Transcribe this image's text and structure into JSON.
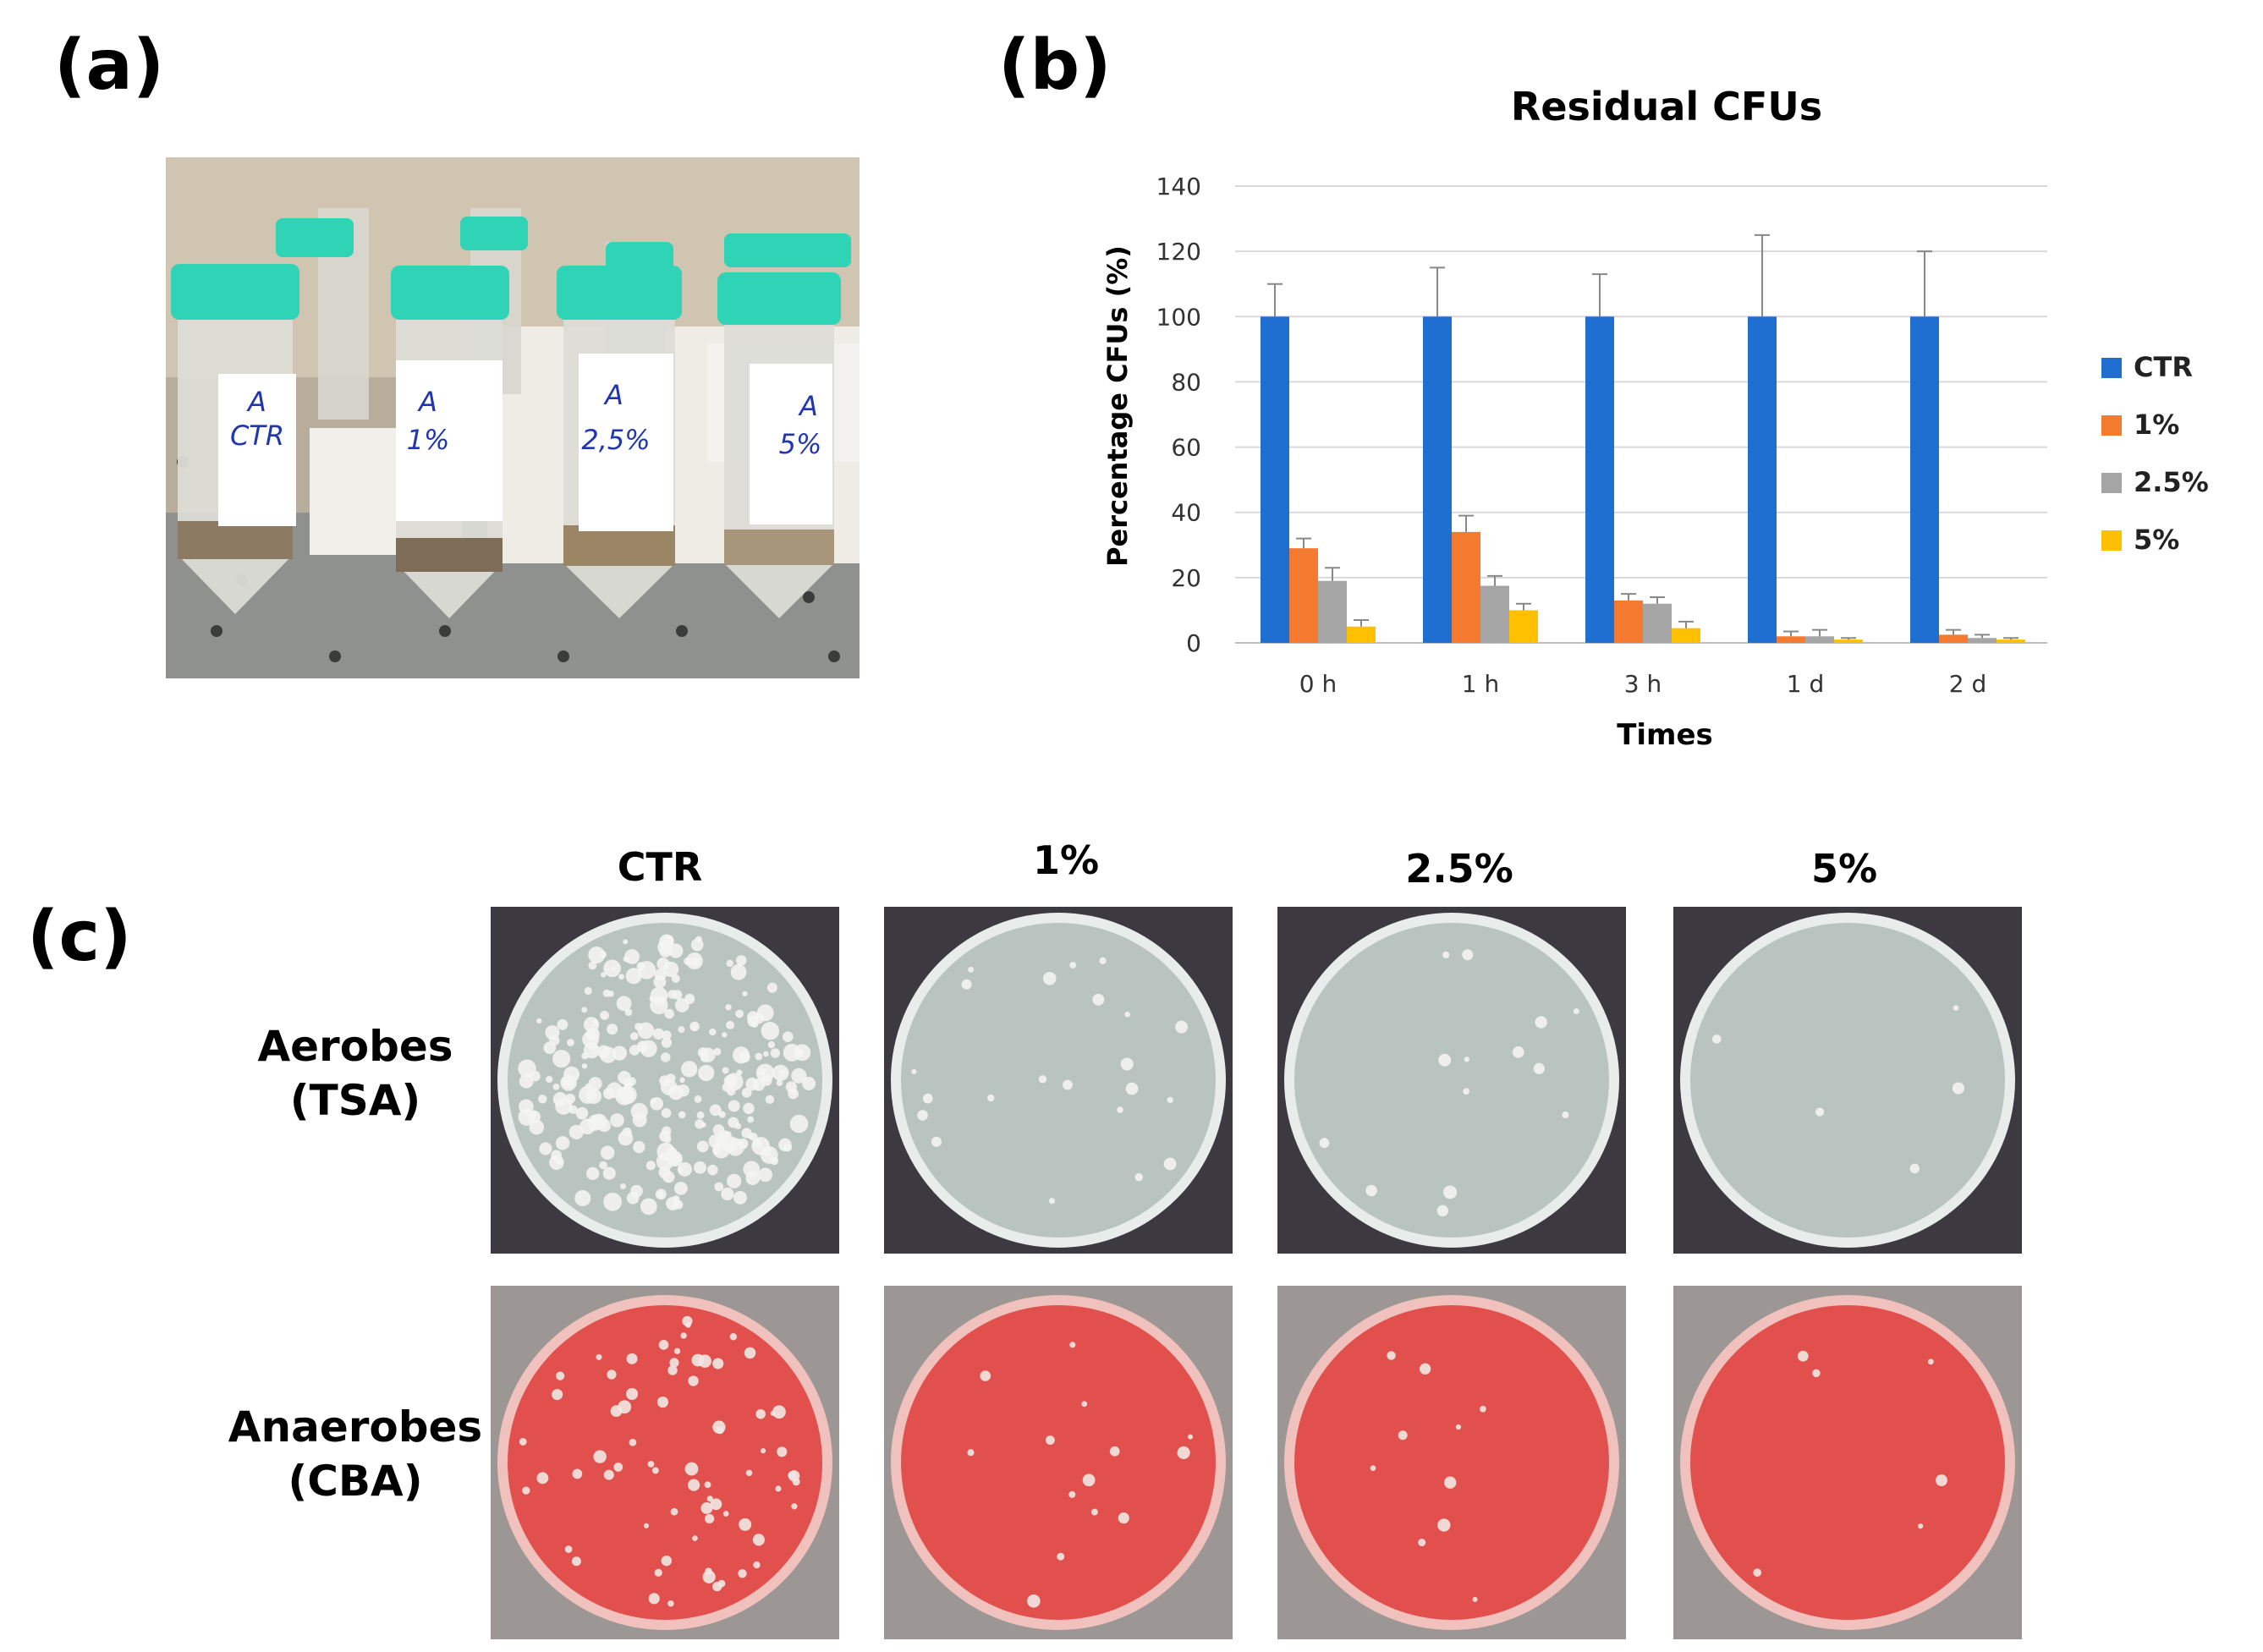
{
  "panels": {
    "a": "(a)",
    "b": "(b)",
    "c": "(c)"
  },
  "tube_labels": [
    {
      "line1": "A",
      "line2": "CTR"
    },
    {
      "line1": "A",
      "line2": "1%"
    },
    {
      "line1": "A",
      "line2": "2,5%"
    },
    {
      "line1": "A",
      "line2": "5%"
    }
  ],
  "chart_data": {
    "type": "bar",
    "title": "Residual CFUs",
    "xlabel": "Times",
    "ylabel": "Percentage CFUs (%)",
    "ylim": [
      0,
      140
    ],
    "yticks": [
      0,
      20,
      40,
      60,
      80,
      100,
      120,
      140
    ],
    "grid": true,
    "legend_position": "right",
    "categories": [
      "0 h",
      "1 h",
      "3 h",
      "1 d",
      "2 d"
    ],
    "series": [
      {
        "name": "CTR",
        "color": "#1f6fd1",
        "values": [
          100,
          100,
          100,
          100,
          100
        ],
        "errors": [
          10,
          15,
          13,
          25,
          20
        ]
      },
      {
        "name": "1%",
        "color": "#f47a30",
        "values": [
          29,
          34,
          13,
          2,
          2.5
        ],
        "errors": [
          3,
          5,
          2,
          1.5,
          1.5
        ]
      },
      {
        "name": "2.5%",
        "color": "#a5a5a5",
        "values": [
          19,
          17.5,
          12,
          2,
          1.5
        ],
        "errors": [
          4,
          3,
          2,
          2,
          1
        ]
      },
      {
        "name": "5%",
        "color": "#ffc000",
        "values": [
          5,
          10,
          4.5,
          1,
          1
        ],
        "errors": [
          2,
          2,
          2,
          0.5,
          0.5
        ]
      }
    ]
  },
  "plates": {
    "columns": [
      "CTR",
      "1%",
      "2.5%",
      "5%"
    ],
    "rows": [
      {
        "line1": "Aerobes",
        "line2": "(TSA)"
      },
      {
        "line1": "Anaerobes",
        "line2": "(CBA)"
      }
    ]
  },
  "colors": {
    "tube_cap": "#2fd3b6",
    "tsa_agar": "#b9c4c0",
    "cba_agar": "#e2504e",
    "plate_bg_dark": "#3c3a40",
    "plate_bg_gray": "#9c9794"
  }
}
